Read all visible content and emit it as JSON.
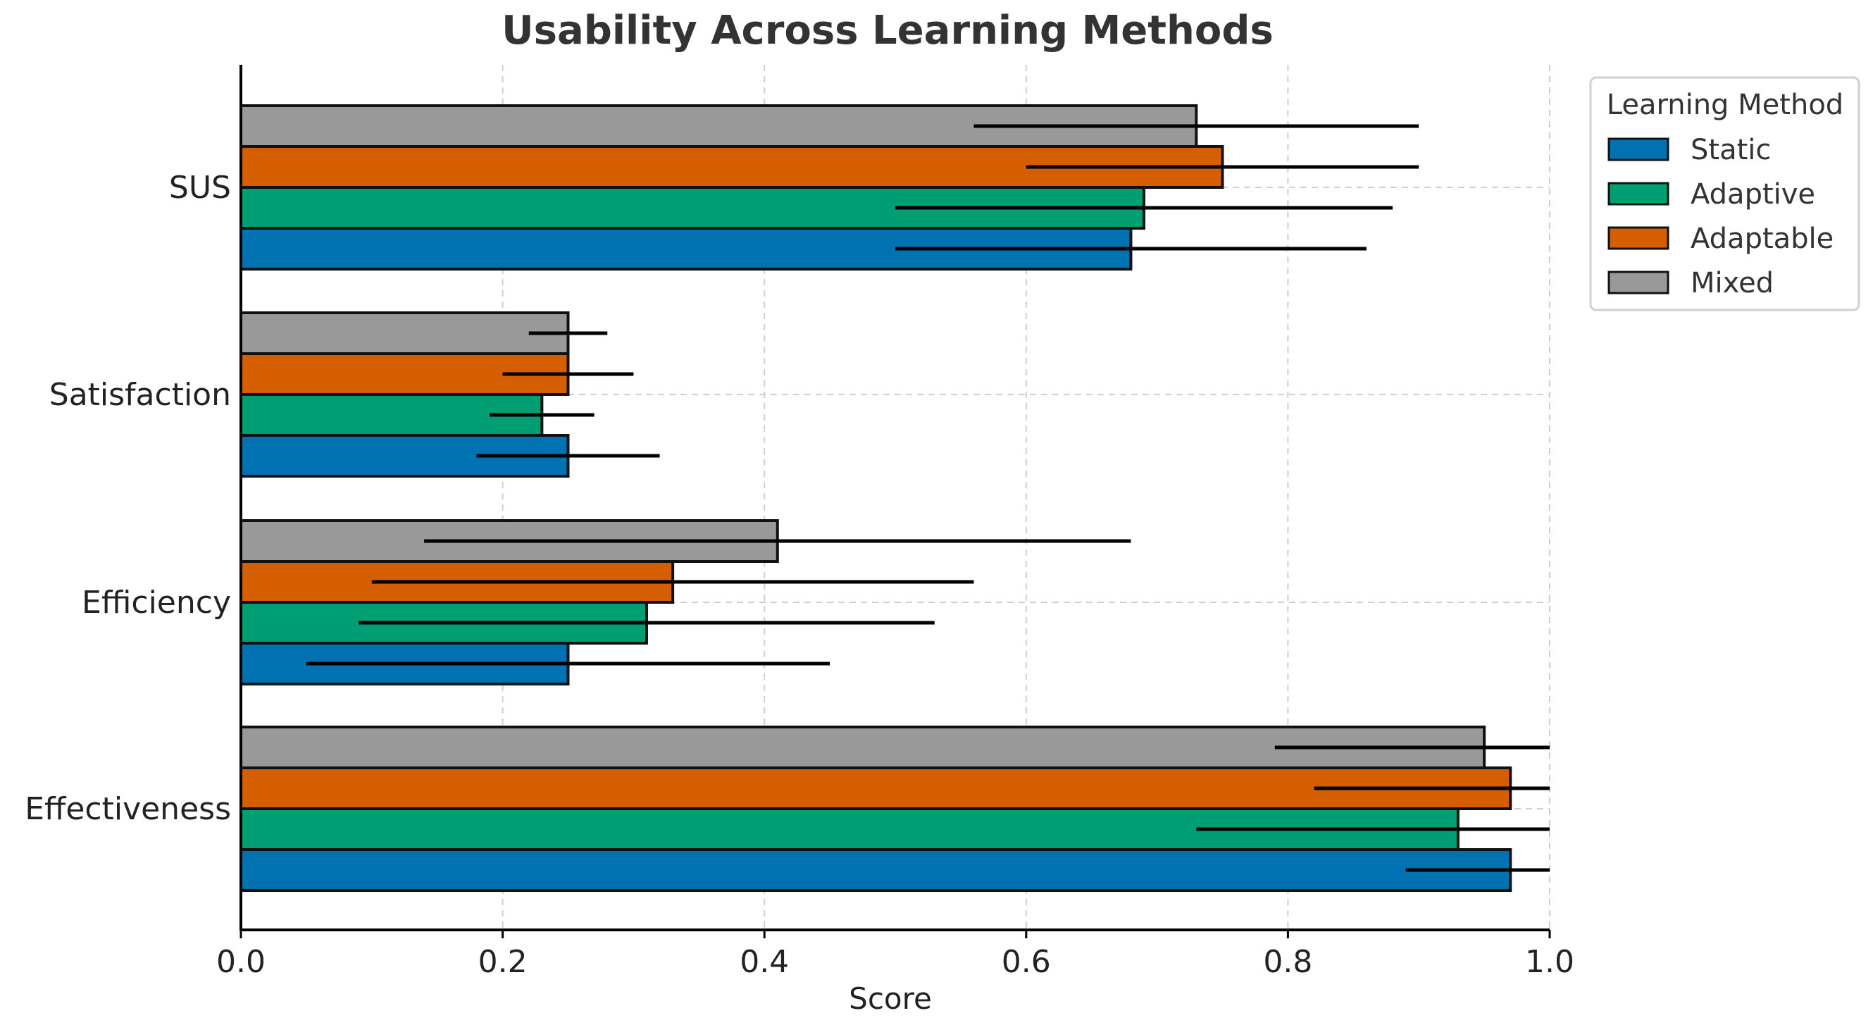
{
  "chart_data": {
    "type": "bar",
    "orientation": "horizontal",
    "title": "Usability Across Learning Methods",
    "xlabel": "Score",
    "ylabel": "",
    "xlim": [
      0,
      1.0
    ],
    "x_ticks": [
      "0.0",
      "0.2",
      "0.4",
      "0.6",
      "0.8",
      "1.0"
    ],
    "x_tick_values": [
      0.0,
      0.2,
      0.4,
      0.6,
      0.8,
      1.0
    ],
    "grid": true,
    "legend_title": "Learning Method",
    "legend_position": "top-right",
    "categories": [
      "Effectiveness",
      "Efficiency",
      "Satisfaction",
      "SUS"
    ],
    "series": [
      {
        "name": "Static",
        "color": "#0072b2",
        "values": [
          0.97,
          0.25,
          0.25,
          0.68
        ],
        "errors": [
          0.08,
          0.2,
          0.07,
          0.18
        ]
      },
      {
        "name": "Adaptive",
        "color": "#009e73",
        "values": [
          0.93,
          0.31,
          0.23,
          0.69
        ],
        "errors": [
          0.2,
          0.22,
          0.04,
          0.19
        ]
      },
      {
        "name": "Adaptable",
        "color": "#d55e00",
        "values": [
          0.97,
          0.33,
          0.25,
          0.75
        ],
        "errors": [
          0.15,
          0.23,
          0.05,
          0.15
        ]
      },
      {
        "name": "Mixed",
        "color": "#999999",
        "values": [
          0.95,
          0.41,
          0.25,
          0.73
        ],
        "errors": [
          0.16,
          0.27,
          0.03,
          0.17
        ]
      }
    ]
  }
}
